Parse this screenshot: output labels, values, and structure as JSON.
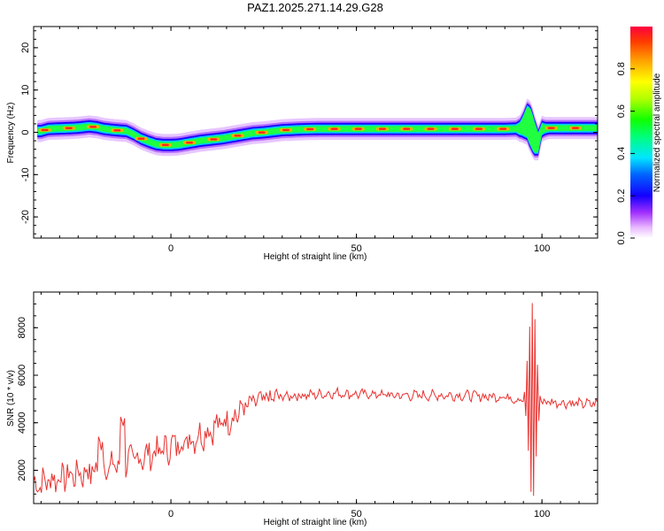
{
  "figure": {
    "title": "PAZ1.2025.271.14.29.G28"
  },
  "chart_data": [
    {
      "type": "heatmap",
      "name": "spectrogram",
      "xlabel": "Height of straight line (km)",
      "ylabel": "Frequency (Hz)",
      "xlim": [
        -37,
        115
      ],
      "ylim": [
        -25,
        25
      ],
      "xticks": [
        0,
        50,
        100
      ],
      "yticks": [
        20,
        10,
        0,
        -10,
        -20
      ],
      "colorbar": {
        "label": "Normalized spectral amplitude",
        "range": [
          0,
          1
        ],
        "ticks": [
          0.0,
          0.2,
          0.4,
          0.6,
          0.8
        ],
        "tick_labels": [
          "0.0",
          "0.2",
          "0.4",
          "0.6",
          "0.8"
        ]
      },
      "ridge": {
        "description": "peak frequency (Hz) vs height (km)",
        "x": [
          -35,
          -33,
          -30,
          -27,
          -25,
          -22,
          -20,
          -18,
          -15,
          -12,
          -10,
          -8,
          -6,
          -4,
          -2,
          0,
          2,
          4,
          6,
          8,
          10,
          12,
          14,
          16,
          18,
          20,
          22,
          25,
          28,
          30,
          35,
          40,
          50,
          60,
          70,
          80,
          90,
          94,
          95,
          96,
          97,
          98,
          99,
          100,
          102,
          105,
          110,
          115
        ],
        "y": [
          0.3,
          0.8,
          0.9,
          1.0,
          1.1,
          1.4,
          1.2,
          0.8,
          0.5,
          0.3,
          -0.5,
          -1.5,
          -2.2,
          -2.8,
          -3.0,
          -3.0,
          -2.9,
          -2.6,
          -2.3,
          -2.0,
          -1.8,
          -1.6,
          -1.4,
          -1.1,
          -0.8,
          -0.5,
          -0.2,
          0.0,
          0.3,
          0.5,
          0.7,
          0.8,
          0.8,
          0.8,
          0.8,
          0.8,
          0.8,
          0.9,
          1.6,
          2.5,
          1.0,
          -1.2,
          -2.5,
          0.8,
          1.0,
          1.0,
          1.0,
          1.0
        ]
      }
    },
    {
      "type": "line",
      "name": "snr",
      "xlabel": "Height of straight line (km)",
      "ylabel": "SNR (10 * v/v)",
      "xlim": [
        -37,
        115
      ],
      "ylim": [
        600,
        9500
      ],
      "xticks": [
        0,
        50,
        100
      ],
      "yticks": [
        2000,
        4000,
        6000,
        8000
      ],
      "color": "#e8322f",
      "series": [
        {
          "name": "SNR",
          "trend_x": [
            -37,
            -30,
            -20,
            -15,
            -10,
            -5,
            0,
            5,
            10,
            15,
            18,
            20,
            22,
            25,
            30,
            35,
            40,
            45,
            50,
            55,
            60,
            65,
            70,
            75,
            80,
            85,
            90,
            93,
            95,
            100,
            105,
            110,
            115
          ],
          "trend_y": [
            1400,
            1700,
            2000,
            2200,
            2450,
            2700,
            3000,
            3300,
            3650,
            4100,
            4400,
            4700,
            4850,
            5000,
            5100,
            5150,
            5200,
            5250,
            5200,
            5200,
            5150,
            5150,
            5150,
            5150,
            5150,
            5100,
            5100,
            5000,
            5000,
            4900,
            4850,
            4800,
            4800
          ]
        }
      ]
    }
  ]
}
